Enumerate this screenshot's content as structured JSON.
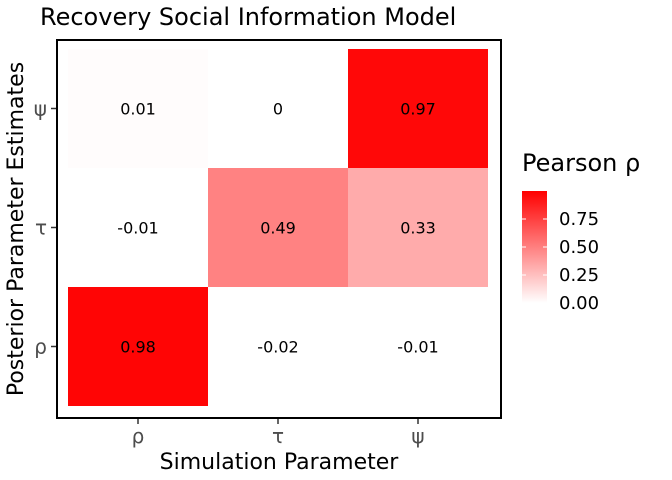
{
  "chart_data": {
    "type": "heatmap",
    "title": "Recovery Social Information Model",
    "xlabel": "Simulation Parameter",
    "ylabel": "Posterior Parameter Estimates",
    "x_categories": [
      "ρ",
      "τ",
      "ψ"
    ],
    "y_categories": [
      "ρ",
      "τ",
      "ψ"
    ],
    "values": [
      [
        0.98,
        -0.02,
        -0.01
      ],
      [
        -0.01,
        0.49,
        0.33
      ],
      [
        0.01,
        0,
        0.97
      ]
    ],
    "value_labels": [
      [
        "0.98",
        "-0.02",
        "-0.01"
      ],
      [
        "-0.01",
        "0.49",
        "0.33"
      ],
      [
        "0.01",
        "0",
        "0.97"
      ]
    ],
    "legend": {
      "title": "Pearson ρ",
      "ticks": [
        "0.00",
        "0.25",
        "0.50",
        "0.75"
      ],
      "tick_values": [
        0.0,
        0.25,
        0.5,
        0.75
      ],
      "range": [
        0,
        1
      ],
      "low_color": "#ffffff",
      "high_color": "#ff0000",
      "placement": "right"
    },
    "grid": false
  }
}
